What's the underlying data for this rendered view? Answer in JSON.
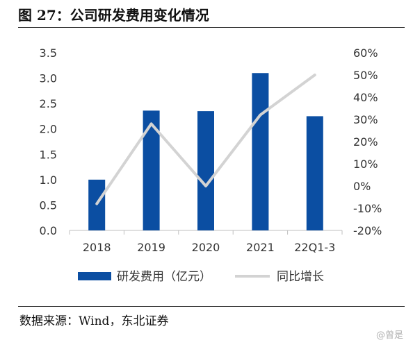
{
  "header": {
    "title": "图 27：公司研发费用变化情况"
  },
  "footer": {
    "source": "数据来源：Wind，东北证券"
  },
  "watermark": {
    "text": "@曾是"
  },
  "chart_data": {
    "type": "bar",
    "categories": [
      "2018",
      "2019",
      "2020",
      "2021",
      "22Q1-3"
    ],
    "series": [
      {
        "name": "研发费用（亿元）",
        "type": "bar",
        "axis": "left",
        "color": "#0b4ea2",
        "values": [
          1.0,
          2.36,
          2.35,
          3.1,
          2.25
        ]
      },
      {
        "name": "同比增长",
        "type": "line",
        "axis": "right",
        "color": "#d3d3d3",
        "values": [
          -8,
          28,
          0,
          32,
          50
        ]
      }
    ],
    "y_left": {
      "min": 0,
      "max": 3.5,
      "ticks": [
        "0.0",
        "0.5",
        "1.0",
        "1.5",
        "2.0",
        "2.5",
        "3.0",
        "3.5"
      ]
    },
    "y_right": {
      "min": -20,
      "max": 60,
      "ticks": [
        "-20%",
        "-10%",
        "0%",
        "10%",
        "20%",
        "30%",
        "40%",
        "50%",
        "60%"
      ]
    },
    "grid": false,
    "legend_position": "bottom"
  }
}
